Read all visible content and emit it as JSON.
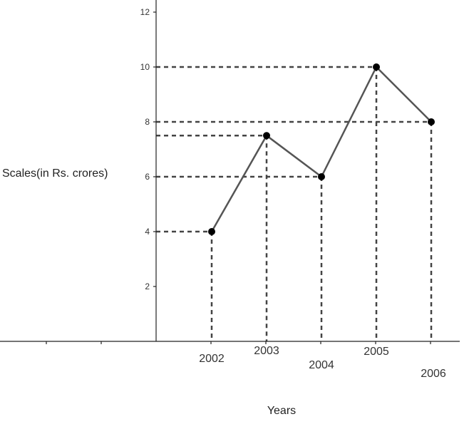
{
  "chart_data": {
    "type": "line",
    "xlabel": "Years",
    "ylabel": "Scales(in Rs. crores)",
    "categories": [
      "2002",
      "2003",
      "2004",
      "2005",
      "2006"
    ],
    "series": [
      {
        "values": [
          4,
          7.5,
          6,
          10,
          8
        ]
      }
    ],
    "ylim": [
      0,
      12
    ],
    "y_ticks": [
      "2",
      "4",
      "6",
      "8",
      "10",
      "12"
    ],
    "grid": false,
    "guide_lines": "dashed drop lines from each point to both axes",
    "colors": {
      "line": "#555555",
      "point": "#000000",
      "guide": "#444444",
      "axis": "#222222"
    }
  }
}
